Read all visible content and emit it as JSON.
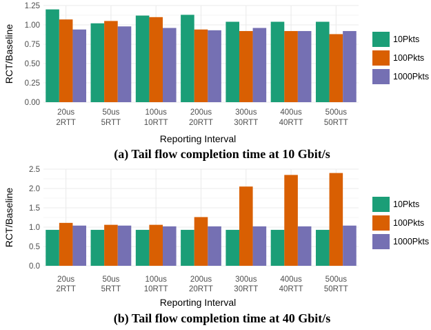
{
  "colors": {
    "10Pkts": "#1b9e77",
    "100Pkts": "#d95f02",
    "1000Pkts": "#7570b3",
    "grid": "#ebebeb"
  },
  "chart_data": [
    {
      "type": "bar",
      "caption": "(a) Tail flow completion time at 10 Gbit/s",
      "xlabel": "Reporting Interval",
      "ylabel": "RCT/Baseline",
      "ylim": [
        0,
        1.25
      ],
      "yticks": [
        "0.00",
        "0.25",
        "0.50",
        "0.75",
        "1.00",
        "1.25"
      ],
      "categories": [
        [
          "20us",
          "2RTT"
        ],
        [
          "50us",
          "5RTT"
        ],
        [
          "100us",
          "10RTT"
        ],
        [
          "200us",
          "20RTT"
        ],
        [
          "300us",
          "30RTT"
        ],
        [
          "400us",
          "40RTT"
        ],
        [
          "500us",
          "50RTT"
        ]
      ],
      "series": [
        {
          "name": "10Pkts",
          "values": [
            1.2,
            1.02,
            1.12,
            1.13,
            1.04,
            1.04,
            1.04
          ]
        },
        {
          "name": "100Pkts",
          "values": [
            1.07,
            1.05,
            1.1,
            0.94,
            0.92,
            0.92,
            0.88
          ]
        },
        {
          "name": "1000Pkts",
          "values": [
            0.94,
            0.98,
            0.96,
            0.93,
            0.96,
            0.92,
            0.92
          ]
        }
      ],
      "legend_position": "right",
      "grid": true
    },
    {
      "type": "bar",
      "caption": "(b) Tail flow completion time at 40 Gbit/s",
      "xlabel": "Reporting Interval",
      "ylabel": "RCT/Baseline",
      "ylim": [
        0,
        2.5
      ],
      "yticks": [
        "0.0",
        "0.5",
        "1.0",
        "1.5",
        "2.0",
        "2.5"
      ],
      "categories": [
        [
          "20us",
          "2RTT"
        ],
        [
          "50us",
          "5RTT"
        ],
        [
          "100us",
          "10RTT"
        ],
        [
          "200us",
          "20RTT"
        ],
        [
          "300us",
          "30RTT"
        ],
        [
          "400us",
          "40RTT"
        ],
        [
          "500us",
          "50RTT"
        ]
      ],
      "series": [
        {
          "name": "10Pkts",
          "values": [
            0.93,
            0.93,
            0.93,
            0.93,
            0.93,
            0.93,
            0.93
          ]
        },
        {
          "name": "100Pkts",
          "values": [
            1.11,
            1.06,
            1.06,
            1.26,
            2.05,
            2.35,
            2.4
          ]
        },
        {
          "name": "1000Pkts",
          "values": [
            1.04,
            1.04,
            1.02,
            1.02,
            1.02,
            1.02,
            1.04
          ]
        }
      ],
      "legend_position": "right",
      "grid": true
    }
  ]
}
